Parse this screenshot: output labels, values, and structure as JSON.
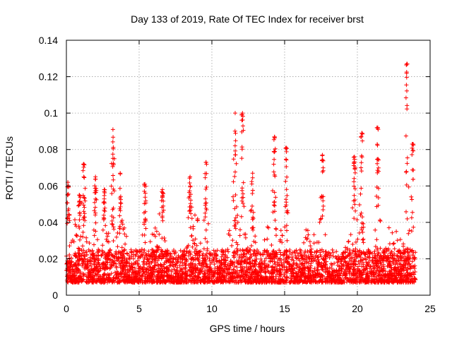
{
  "chart_data": {
    "type": "scatter",
    "title": "Day 133 of 2019, Rate Of TEC Index for receiver brst",
    "xlabel": "GPS time / hours",
    "ylabel": "ROTI / TECUs",
    "xlim": [
      0,
      25
    ],
    "ylim": [
      0,
      0.14
    ],
    "xticks": [
      0,
      5,
      10,
      15,
      20,
      25
    ],
    "xtick_labels": [
      "0",
      "5",
      "10",
      "15",
      "20",
      "25"
    ],
    "yticks": [
      0,
      0.02,
      0.04,
      0.06,
      0.08,
      0.1,
      0.12,
      0.14
    ],
    "ytick_labels": [
      "0",
      "0.02",
      "0.04",
      "0.06",
      "0.08",
      "0.1",
      "0.12",
      "0.14"
    ],
    "grid": true,
    "legend": "none",
    "marker": "+",
    "color": "#ff0000",
    "x_range_of_data": [
      0,
      24
    ],
    "baseline_band": [
      0.007,
      0.025
    ],
    "series": [
      {
        "name": "ROTI",
        "peaks": [
          {
            "x": 0.1,
            "y": 0.062
          },
          {
            "x": 0.9,
            "y": 0.055
          },
          {
            "x": 1.2,
            "y": 0.072
          },
          {
            "x": 2.0,
            "y": 0.065
          },
          {
            "x": 2.6,
            "y": 0.058
          },
          {
            "x": 3.2,
            "y": 0.091
          },
          {
            "x": 3.7,
            "y": 0.067
          },
          {
            "x": 5.4,
            "y": 0.061
          },
          {
            "x": 6.6,
            "y": 0.058
          },
          {
            "x": 8.5,
            "y": 0.065
          },
          {
            "x": 9.6,
            "y": 0.073
          },
          {
            "x": 11.6,
            "y": 0.1
          },
          {
            "x": 12.1,
            "y": 0.1
          },
          {
            "x": 12.8,
            "y": 0.067
          },
          {
            "x": 14.3,
            "y": 0.087
          },
          {
            "x": 15.1,
            "y": 0.081
          },
          {
            "x": 17.6,
            "y": 0.077
          },
          {
            "x": 19.8,
            "y": 0.076
          },
          {
            "x": 20.3,
            "y": 0.089
          },
          {
            "x": 21.4,
            "y": 0.092
          },
          {
            "x": 23.4,
            "y": 0.127
          },
          {
            "x": 23.8,
            "y": 0.083
          }
        ]
      }
    ]
  }
}
